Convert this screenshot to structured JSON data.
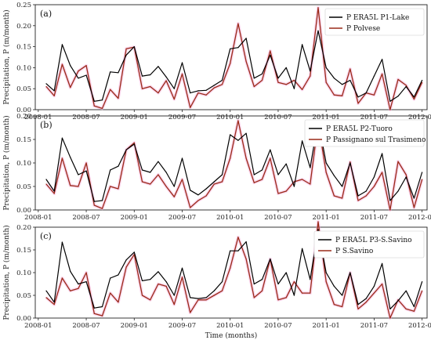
{
  "chart_data": [
    {
      "type": "line",
      "panel": "(a)",
      "ylabel": "Precipitation, P (m/month)",
      "xlabel": "",
      "xlim": [
        "2007-12-20",
        "2012-01-20"
      ],
      "ylim": [
        0,
        0.25
      ],
      "yticks": [
        "0.00",
        "0.05",
        "0.10",
        "0.15",
        "0.20",
        "0.25"
      ],
      "xticks": [
        "2008-01",
        "2008-07",
        "2009-01",
        "2009-07",
        "2010-01",
        "2010-07",
        "2011-01",
        "2011-07",
        "2012-01"
      ],
      "legend": "top-right",
      "x": [
        "2008-02",
        "2008-03",
        "2008-04",
        "2008-05",
        "2008-06",
        "2008-07",
        "2008-08",
        "2008-09",
        "2008-10",
        "2008-11",
        "2008-12",
        "2009-01",
        "2009-02",
        "2009-03",
        "2009-04",
        "2009-05",
        "2009-06",
        "2009-07",
        "2009-08",
        "2009-09",
        "2009-10",
        "2009-11",
        "2009-12",
        "2010-01",
        "2010-02",
        "2010-03",
        "2010-04",
        "2010-05",
        "2010-06",
        "2010-07",
        "2010-08",
        "2010-09",
        "2010-10",
        "2010-11",
        "2010-12",
        "2011-01",
        "2011-02",
        "2011-03",
        "2011-04",
        "2011-05",
        "2011-06",
        "2011-07",
        "2011-08",
        "2011-09",
        "2011-10",
        "2011-11",
        "2011-12",
        "2012-01"
      ],
      "series": [
        {
          "name": "P ERA5L P1-Lake",
          "color": "#000000",
          "values": [
            0.062,
            0.045,
            0.155,
            0.105,
            0.075,
            0.082,
            0.02,
            0.023,
            0.09,
            0.088,
            0.13,
            0.15,
            0.08,
            0.083,
            0.103,
            0.078,
            0.05,
            0.112,
            0.04,
            0.045,
            0.046,
            0.058,
            0.07,
            0.145,
            0.148,
            0.17,
            0.075,
            0.085,
            0.13,
            0.075,
            0.1,
            0.05,
            0.155,
            0.092,
            0.188,
            0.1,
            0.075,
            0.06,
            0.07,
            0.03,
            0.04,
            0.08,
            0.12,
            0.02,
            0.032,
            0.055,
            0.03,
            0.07
          ]
        },
        {
          "name": "P Polvese",
          "color": "#9a2a18",
          "values": [
            0.055,
            0.033,
            0.108,
            0.053,
            0.092,
            0.105,
            0.009,
            0.003,
            0.048,
            0.027,
            0.145,
            0.149,
            0.05,
            0.055,
            0.04,
            0.069,
            0.025,
            0.085,
            0.005,
            0.04,
            0.035,
            0.052,
            0.06,
            0.11,
            0.205,
            0.115,
            0.055,
            0.07,
            0.14,
            0.065,
            0.06,
            0.07,
            0.048,
            0.08,
            0.243,
            0.065,
            0.035,
            0.033,
            0.097,
            0.015,
            0.04,
            0.035,
            0.085,
            0.0,
            0.072,
            0.058,
            0.025,
            0.065
          ]
        }
      ]
    },
    {
      "type": "line",
      "panel": "(b)",
      "ylabel": "Precipitation, P (m/month)",
      "xlabel": "",
      "xlim": [
        "2007-12-20",
        "2012-01-20"
      ],
      "ylim": [
        0,
        0.2
      ],
      "yticks": [
        "0.00",
        "0.05",
        "0.10",
        "0.15",
        "0.20"
      ],
      "xticks": [
        "2008-01",
        "2008-07",
        "2009-01",
        "2009-07",
        "2010-01",
        "2010-07",
        "2011-01",
        "2011-07",
        "2012-01"
      ],
      "legend": "top-right",
      "x": [
        "2008-02",
        "2008-03",
        "2008-04",
        "2008-05",
        "2008-06",
        "2008-07",
        "2008-08",
        "2008-09",
        "2008-10",
        "2008-11",
        "2008-12",
        "2009-01",
        "2009-02",
        "2009-03",
        "2009-04",
        "2009-05",
        "2009-06",
        "2009-07",
        "2009-08",
        "2009-09",
        "2009-10",
        "2009-11",
        "2009-12",
        "2010-01",
        "2010-02",
        "2010-03",
        "2010-04",
        "2010-05",
        "2010-06",
        "2010-07",
        "2010-08",
        "2010-09",
        "2010-10",
        "2010-11",
        "2010-12",
        "2011-01",
        "2011-02",
        "2011-03",
        "2011-04",
        "2011-05",
        "2011-06",
        "2011-07",
        "2011-08",
        "2011-09",
        "2011-10",
        "2011-11",
        "2011-12",
        "2012-01"
      ],
      "series": [
        {
          "name": "P ERA5L P2-Tuoro",
          "color": "#000000",
          "values": [
            0.065,
            0.04,
            0.153,
            0.112,
            0.075,
            0.083,
            0.018,
            0.02,
            0.085,
            0.093,
            0.128,
            0.14,
            0.085,
            0.08,
            0.103,
            0.08,
            0.05,
            0.11,
            0.042,
            0.032,
            0.045,
            0.06,
            0.075,
            0.16,
            0.148,
            0.163,
            0.075,
            0.085,
            0.128,
            0.075,
            0.098,
            0.05,
            0.147,
            0.09,
            0.19,
            0.1,
            0.073,
            0.05,
            0.1,
            0.03,
            0.04,
            0.07,
            0.12,
            0.02,
            0.04,
            0.07,
            0.025,
            0.08
          ]
        },
        {
          "name": "P Passignano sul Trasimeno",
          "color": "#9a2a18",
          "values": [
            0.055,
            0.035,
            0.11,
            0.052,
            0.05,
            0.1,
            0.01,
            0.003,
            0.05,
            0.045,
            0.128,
            0.143,
            0.06,
            0.055,
            0.075,
            0.05,
            0.028,
            0.065,
            0.005,
            0.02,
            0.03,
            0.055,
            0.06,
            0.11,
            0.19,
            0.11,
            0.058,
            0.065,
            0.11,
            0.035,
            0.04,
            0.06,
            0.065,
            0.055,
            0.185,
            0.08,
            0.03,
            0.025,
            0.102,
            0.02,
            0.03,
            0.05,
            0.08,
            0.0,
            0.103,
            0.075,
            0.005,
            0.065
          ]
        }
      ]
    },
    {
      "type": "line",
      "panel": "(c)",
      "ylabel": "Precipitation, P (m/month)",
      "xlabel": "Time (months)",
      "xlim": [
        "2007-12-20",
        "2012-01-20"
      ],
      "ylim": [
        0,
        0.2
      ],
      "yticks": [
        "0.00",
        "0.05",
        "0.10",
        "0.15",
        "0.20"
      ],
      "xticks": [
        "2008-01",
        "2008-07",
        "2009-01",
        "2009-07",
        "2010-01",
        "2010-07",
        "2011-01",
        "2011-07",
        "2012-01"
      ],
      "legend": "top-right",
      "x": [
        "2008-02",
        "2008-03",
        "2008-04",
        "2008-05",
        "2008-06",
        "2008-07",
        "2008-08",
        "2008-09",
        "2008-10",
        "2008-11",
        "2008-12",
        "2009-01",
        "2009-02",
        "2009-03",
        "2009-04",
        "2009-05",
        "2009-06",
        "2009-07",
        "2009-08",
        "2009-09",
        "2009-10",
        "2009-11",
        "2009-12",
        "2010-01",
        "2010-02",
        "2010-03",
        "2010-04",
        "2010-05",
        "2010-06",
        "2010-07",
        "2010-08",
        "2010-09",
        "2010-10",
        "2010-11",
        "2010-12",
        "2011-01",
        "2011-02",
        "2011-03",
        "2011-04",
        "2011-05",
        "2011-06",
        "2011-07",
        "2011-08",
        "2011-09",
        "2011-10",
        "2011-11",
        "2011-12",
        "2012-01"
      ],
      "series": [
        {
          "name": "P ERA5L P3-S.Savino",
          "color": "#000000",
          "values": [
            0.06,
            0.035,
            0.167,
            0.103,
            0.075,
            0.08,
            0.022,
            0.025,
            0.088,
            0.095,
            0.128,
            0.145,
            0.082,
            0.085,
            0.102,
            0.08,
            0.05,
            0.11,
            0.045,
            0.043,
            0.045,
            0.06,
            0.08,
            0.148,
            0.148,
            0.168,
            0.075,
            0.085,
            0.13,
            0.075,
            0.1,
            0.05,
            0.153,
            0.085,
            0.195,
            0.1,
            0.07,
            0.05,
            0.1,
            0.03,
            0.043,
            0.07,
            0.12,
            0.02,
            0.038,
            0.06,
            0.025,
            0.08
          ]
        },
        {
          "name": "P S.Savino",
          "color": "#9a2a18",
          "values": [
            0.045,
            0.03,
            0.088,
            0.06,
            0.065,
            0.1,
            0.01,
            0.005,
            0.055,
            0.035,
            0.112,
            0.14,
            0.05,
            0.04,
            0.075,
            0.07,
            0.03,
            0.09,
            0.012,
            0.04,
            0.04,
            0.05,
            0.06,
            0.11,
            0.178,
            0.13,
            0.045,
            0.06,
            0.13,
            0.04,
            0.045,
            0.08,
            0.055,
            0.055,
            0.212,
            0.08,
            0.03,
            0.025,
            0.1,
            0.02,
            0.035,
            0.055,
            0.075,
            0.0,
            0.04,
            0.02,
            0.015,
            0.06
          ]
        }
      ]
    }
  ]
}
